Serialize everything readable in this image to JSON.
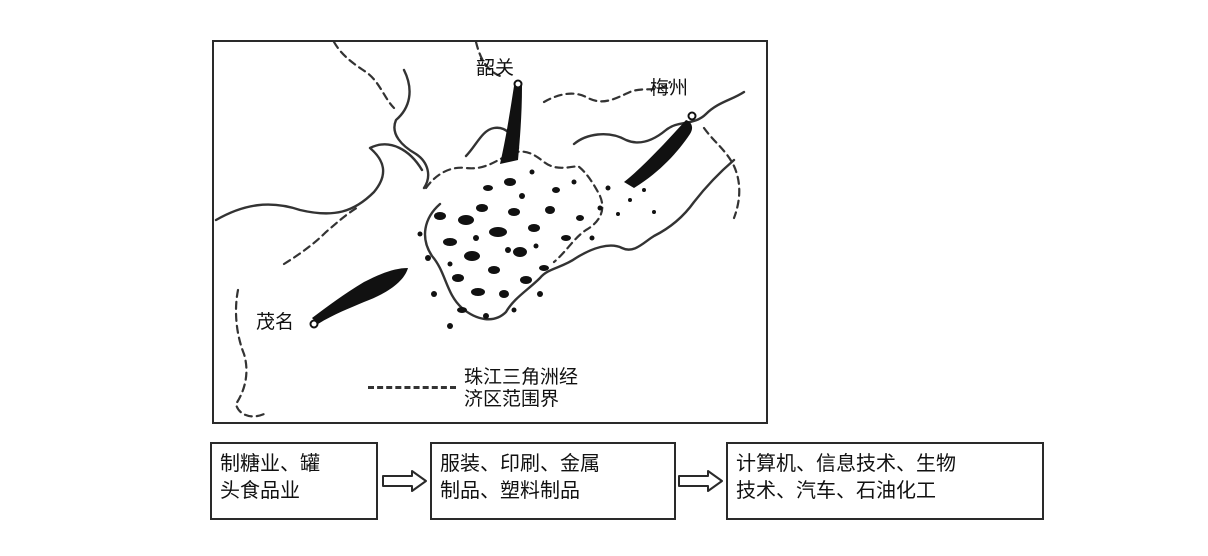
{
  "map": {
    "cities": {
      "shaoguan": "韶关",
      "meizhou": "梅州",
      "maoming": "茂名"
    },
    "legend": {
      "line1": "珠江三角洲经",
      "line2": "济区范围界"
    }
  },
  "flow": {
    "stage1": {
      "line1": "制糖业、罐",
      "line2": "头食品业"
    },
    "stage2": {
      "line1": "服装、印刷、金属",
      "line2": "制品、塑料制品"
    },
    "stage3": {
      "line1": "计算机、信息技术、生物",
      "line2": "技术、汽车、石油化工"
    }
  },
  "colors": {
    "line": "#2a2a2a",
    "fill": "#111111",
    "background": "#ffffff"
  }
}
